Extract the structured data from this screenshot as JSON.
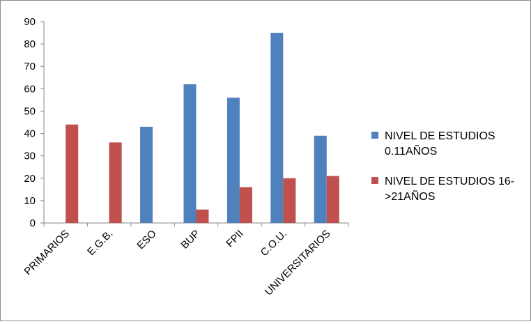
{
  "chart_data": {
    "type": "bar",
    "title": "",
    "xlabel": "",
    "ylabel": "",
    "categories": [
      "PRIMARIOS",
      "E.G.B.",
      "ESO",
      "BUP",
      "FPII",
      "C.O.U.",
      "UNIVERSITARIOS"
    ],
    "series": [
      {
        "name": "NIVEL DE ESTUDIOS 0.11AÑOS",
        "name_lines": [
          "NIVEL DE ESTUDIOS",
          "0.11AÑOS"
        ],
        "color": "#4f81bd",
        "values": [
          0,
          0,
          43,
          62,
          56,
          85,
          39
        ]
      },
      {
        "name": "NIVEL DE ESTUDIOS 16->21AÑOS",
        "name_lines": [
          "NIVEL DE ESTUDIOS 16-",
          ">21AÑOS"
        ],
        "color": "#c0504d",
        "values": [
          44,
          36,
          0,
          6,
          16,
          20,
          21
        ]
      }
    ],
    "ylim": [
      0,
      90
    ],
    "yticks": [
      0,
      10,
      20,
      30,
      40,
      50,
      60,
      70,
      80,
      90
    ],
    "grid": false,
    "legend_position": "right"
  }
}
